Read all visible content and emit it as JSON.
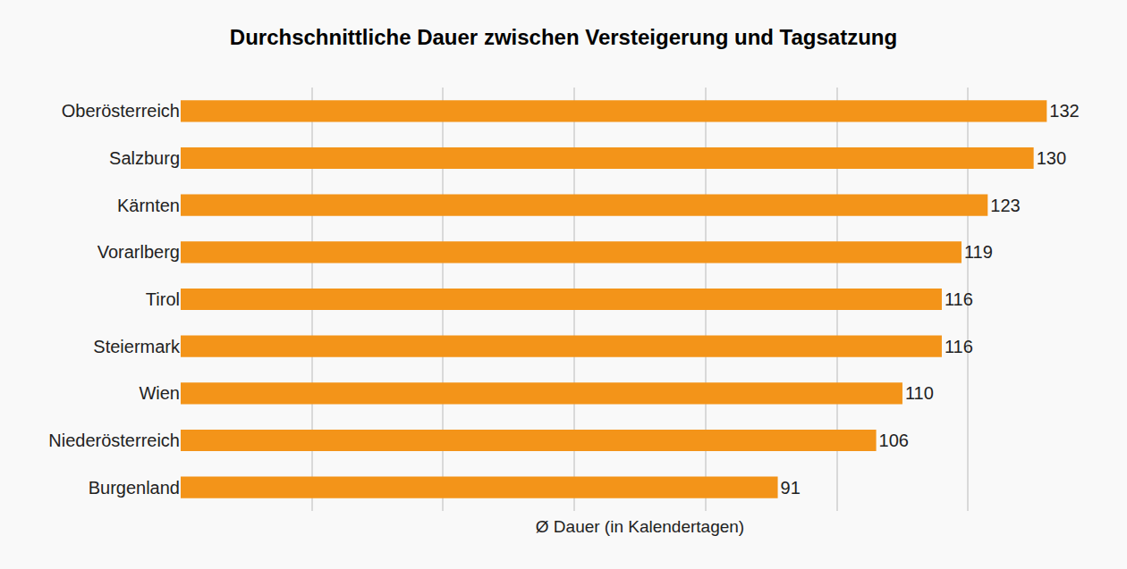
{
  "chart_data": {
    "type": "bar",
    "orientation": "horizontal",
    "title": "Durchschnittliche Dauer zwischen Versteigerung und Tagsatzung",
    "x_label": "Ø Dauer (in Kalendertagen)",
    "categories": [
      "Oberösterreich",
      "Salzburg",
      "Kärnten",
      "Vorarlberg",
      "Tirol",
      "Steiermark",
      "Wien",
      "Niederösterreich",
      "Burgenland"
    ],
    "values": [
      132,
      130,
      123,
      119,
      116,
      116,
      110,
      106,
      91
    ],
    "color": "#f39419",
    "xlim": [
      0,
      140
    ],
    "xticks": [
      0,
      20,
      40,
      60,
      80,
      100,
      120,
      140
    ],
    "grid": true,
    "data_labels": true,
    "tick_labels": "y"
  }
}
